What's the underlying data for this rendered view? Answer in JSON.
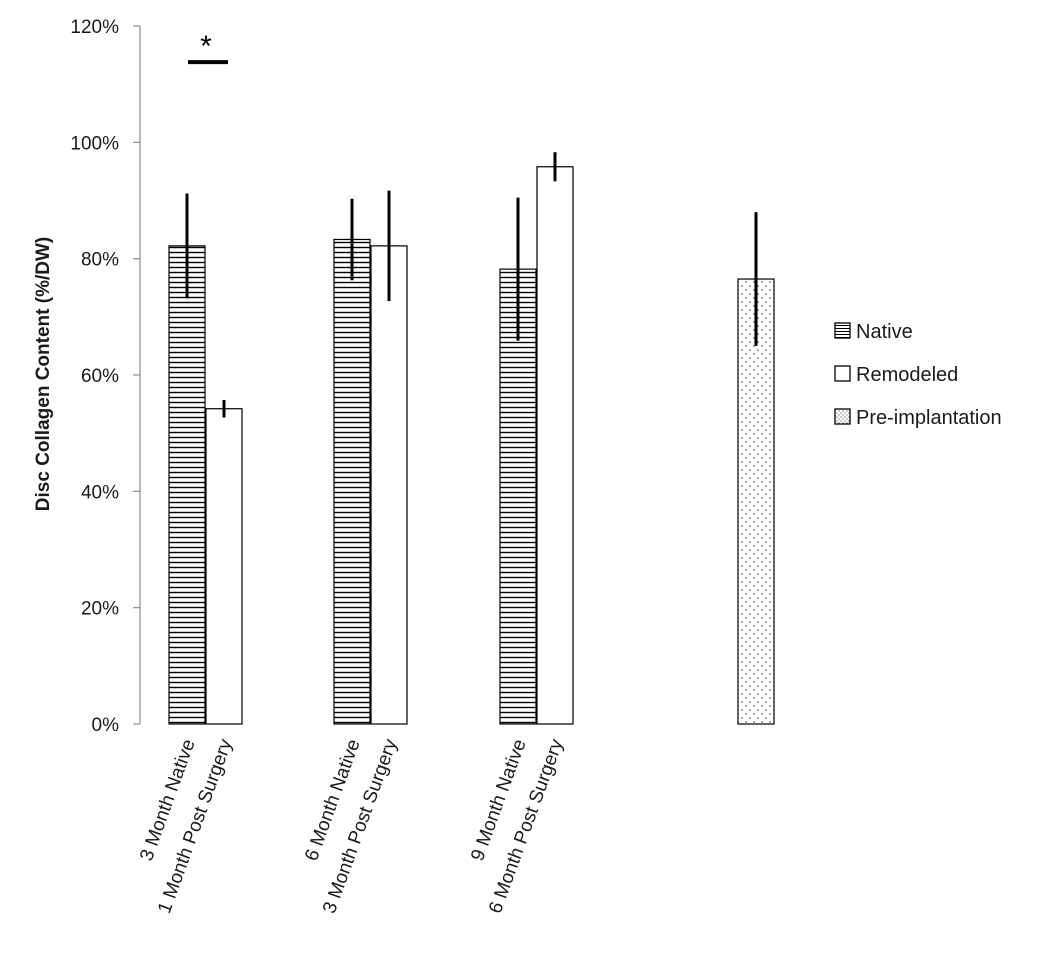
{
  "chart_data": {
    "type": "bar",
    "title": "",
    "xlabel": "",
    "ylabel": "Disc Collagen Content (%/DW)",
    "ylim": [
      0,
      120
    ],
    "yticks": [
      0,
      20,
      40,
      60,
      80,
      100,
      120
    ],
    "ytick_labels": [
      "0%",
      "20%",
      "40%",
      "60%",
      "80%",
      "100%",
      "120%"
    ],
    "legend_position": "right",
    "grid": false,
    "series": [
      {
        "name": "Native",
        "pattern": "horizontal-lines",
        "color": "#000000"
      },
      {
        "name": "Remodeled",
        "pattern": "solid-white",
        "color": "#ffffff"
      },
      {
        "name": "Pre-implantation",
        "pattern": "dots",
        "color": "#ffffff"
      }
    ],
    "groups": [
      {
        "bars": [
          {
            "series": "Native",
            "label": "3 Month Native",
            "value": 82.2,
            "error": 9.0
          },
          {
            "series": "Remodeled",
            "label": "1 Month Post Surgery",
            "value": 54.2,
            "error": 1.5
          }
        ]
      },
      {
        "bars": [
          {
            "series": "Native",
            "label": "6 Month Native",
            "value": 83.3,
            "error": 7.0
          },
          {
            "series": "Remodeled",
            "label": "3 Month Post Surgery",
            "value": 82.2,
            "error": 9.5
          }
        ]
      },
      {
        "bars": [
          {
            "series": "Native",
            "label": "9 Month Native",
            "value": 78.2,
            "error": 12.3
          },
          {
            "series": "Remodeled",
            "label": "6 Month Post Surgery",
            "value": 95.8,
            "error": 2.5
          }
        ]
      },
      {
        "bars": [
          {
            "series": "Pre-implantation",
            "label": "",
            "value": 76.5,
            "error": 11.5
          }
        ]
      }
    ],
    "annotations": [
      {
        "text": "*",
        "group": 0,
        "bracket_value": 113.8,
        "description": "significance marker between 3 Month Native and 1 Month Post Surgery"
      }
    ]
  }
}
